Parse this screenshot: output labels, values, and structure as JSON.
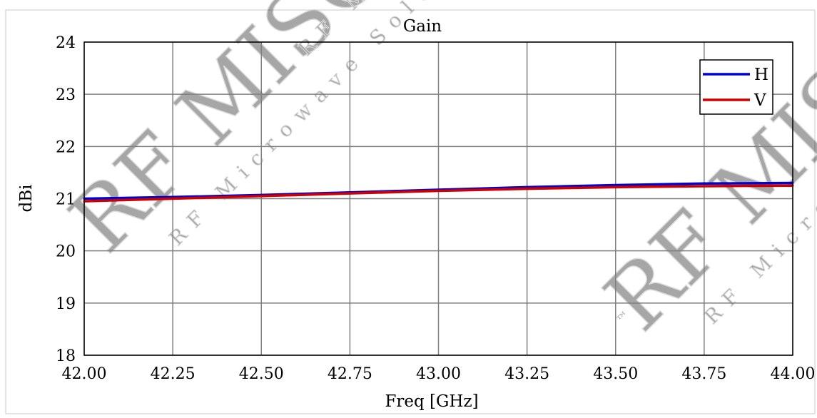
{
  "chart_data": {
    "type": "line",
    "title": "Gain",
    "xlabel": "Freq [GHz]",
    "ylabel": "dBi",
    "xlim": [
      42.0,
      44.0
    ],
    "ylim": [
      18,
      24
    ],
    "xticks": [
      "42.00",
      "42.25",
      "42.50",
      "42.75",
      "43.00",
      "43.25",
      "43.50",
      "43.75",
      "44.00"
    ],
    "yticks": [
      "18",
      "19",
      "20",
      "21",
      "22",
      "23",
      "24"
    ],
    "grid": true,
    "legend_position": "top-right",
    "series": [
      {
        "name": "H",
        "color": "#0000d0",
        "x": [
          42.0,
          42.25,
          42.5,
          42.75,
          43.0,
          43.25,
          43.5,
          43.75,
          44.0
        ],
        "y": [
          21.0,
          21.03,
          21.07,
          21.12,
          21.17,
          21.22,
          21.26,
          21.29,
          21.3
        ]
      },
      {
        "name": "V",
        "color": "#d00000",
        "x": [
          42.0,
          42.25,
          42.5,
          42.75,
          43.0,
          43.25,
          43.5,
          43.75,
          44.0
        ],
        "y": [
          20.95,
          21.0,
          21.05,
          21.1,
          21.15,
          21.19,
          21.22,
          21.24,
          21.25
        ]
      }
    ]
  },
  "watermark": {
    "brand": "RF MISO",
    "tagline": "RF Microwave Solution",
    "trademark": "™"
  }
}
